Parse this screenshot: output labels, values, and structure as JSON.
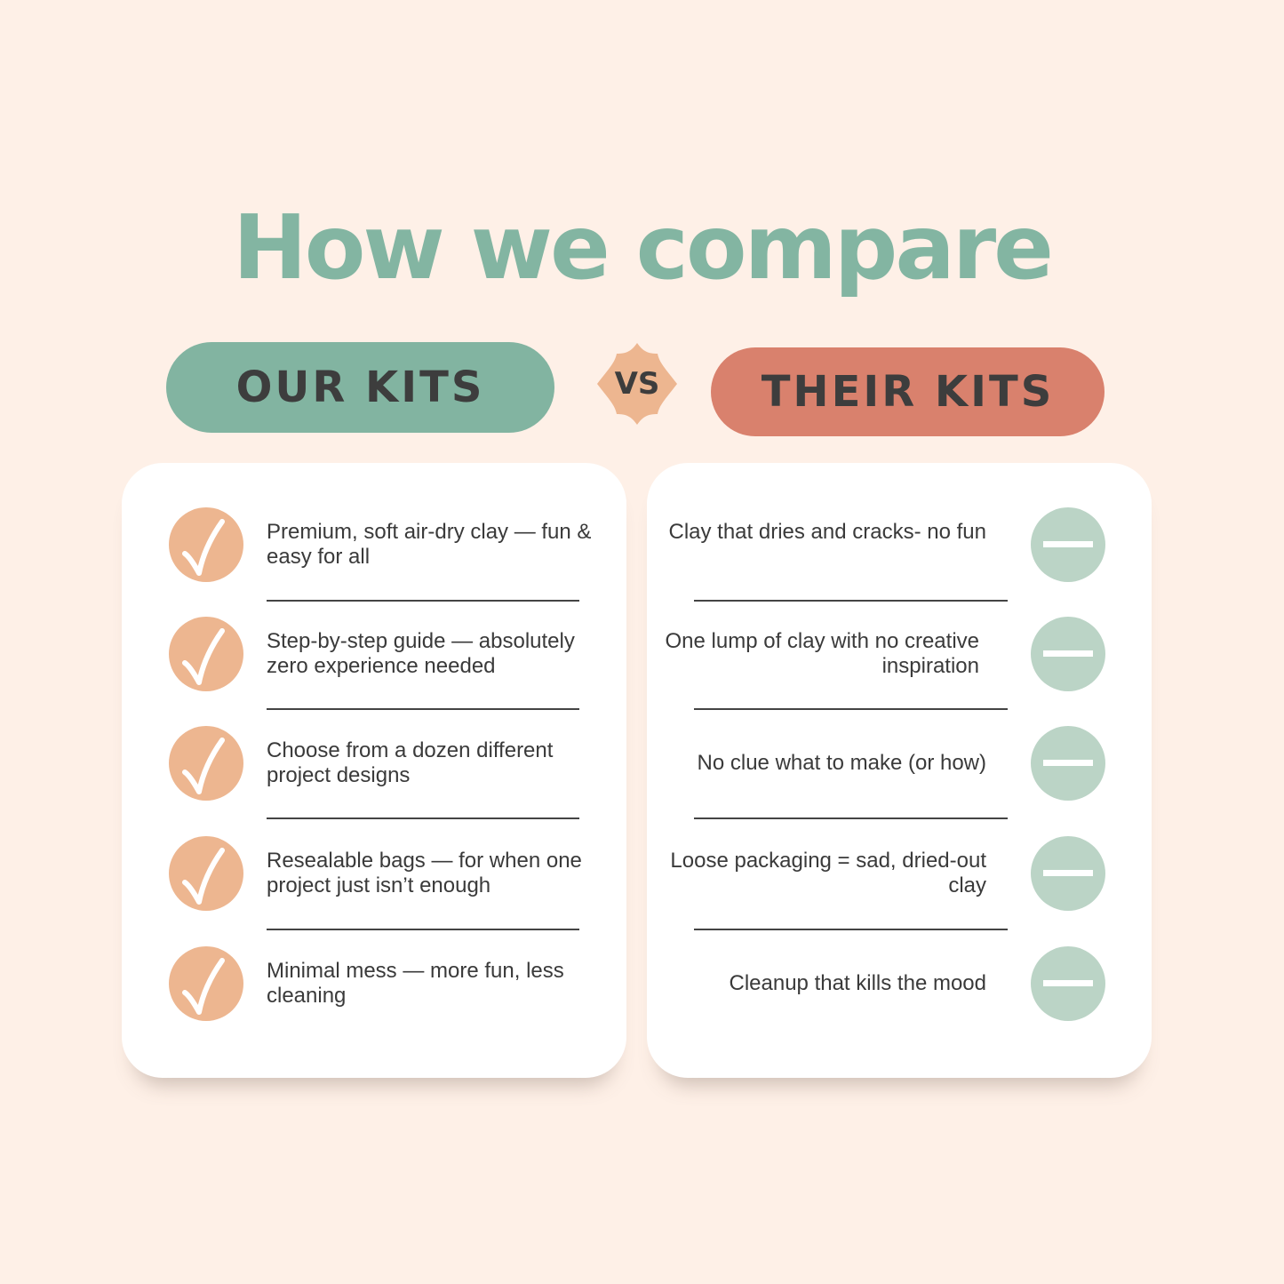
{
  "title": "How we compare",
  "colors": {
    "background": "#fef0e7",
    "title": "#83b5a2",
    "our_pill": "#82b4a1",
    "their_pill": "#d9816d",
    "vs_badge": "#edb690",
    "check_circle": "#edb690",
    "minus_circle": "#bbd4c6"
  },
  "our_kits": {
    "label": "OUR KITS",
    "icon": "check-icon",
    "items": [
      "Premium, soft air-dry clay — fun & easy for all",
      "Step-by-step guide — absolutely zero experience needed",
      "Choose from a dozen different project designs",
      "Resealable bags — for when one project  just isn’t enough",
      "Minimal mess — more fun, less cleaning"
    ]
  },
  "vs_label": "VS",
  "their_kits": {
    "label": "THEIR KITS",
    "icon": "minus-icon",
    "items": [
      "Clay that dries and cracks- no fun",
      "One lump of clay with no creative inspiration",
      "No clue what to make (or how)",
      "Loose packaging = sad, dried-out clay",
      "Cleanup that kills the mood"
    ]
  }
}
